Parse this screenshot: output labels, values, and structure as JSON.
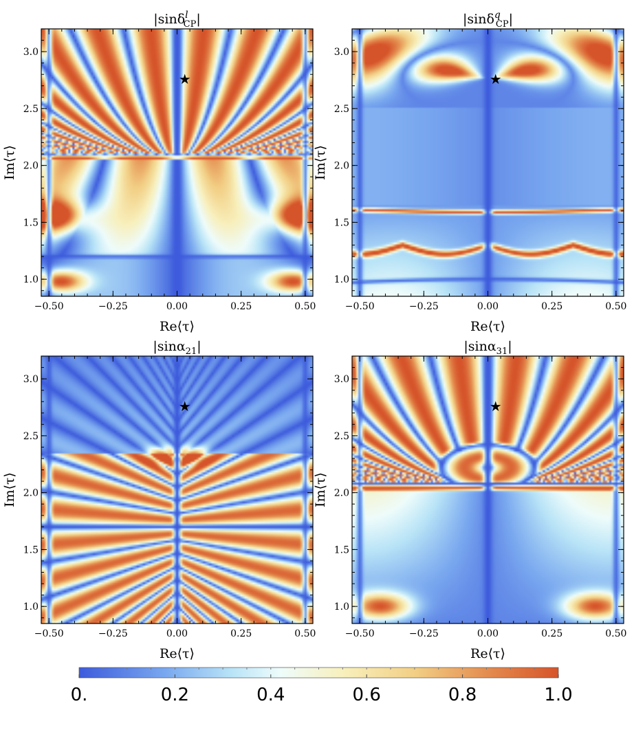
{
  "colors": {
    "low": "#3d5bdc",
    "mid": "#e9fbfb",
    "pale": "#f7e9a8",
    "high": "#d6542a",
    "star": "#000000"
  },
  "chart_data": [
    {
      "type": "heatmap",
      "title": "|sinδ_CP^l|",
      "title_base": "|sinδ",
      "title_sup": "l",
      "title_sub": "CP",
      "title_end": "|",
      "xlabel": "Re⟨τ⟩",
      "ylabel": "Im⟨τ⟩",
      "xlim": [
        -0.53,
        0.53
      ],
      "ylim": [
        0.85,
        3.2
      ],
      "xticks": [
        "−0.50",
        "−0.25",
        "0.00",
        "0.25",
        "0.50"
      ],
      "yticks": [
        "1.0",
        "1.5",
        "2.0",
        "2.5",
        "3.0"
      ],
      "marker": {
        "symbol": "★",
        "x": 0.03,
        "y": 2.76
      },
      "colorscale_range": [
        0,
        1
      ],
      "features": {
        "horizontal_lines_y": [
          1.2,
          2.08
        ],
        "vertical_line_x": [
          0.0
        ]
      }
    },
    {
      "type": "heatmap",
      "title": "|sinδ_CP^q|",
      "title_base": "|sinδ",
      "title_sup": "q",
      "title_sub": "CP",
      "title_end": "|",
      "xlabel": "Re⟨τ⟩",
      "ylabel": "Im⟨τ⟩",
      "xlim": [
        -0.53,
        0.53
      ],
      "ylim": [
        0.85,
        3.2
      ],
      "xticks": [
        "−0.50",
        "−0.25",
        "0.00",
        "0.25",
        "0.50"
      ],
      "yticks": [
        "1.0",
        "1.5",
        "2.0",
        "2.5",
        "3.0"
      ],
      "marker": {
        "symbol": "★",
        "x": 0.03,
        "y": 2.76
      },
      "colorscale_range": [
        0,
        1
      ],
      "features": {
        "horizontal_lines_y": [
          1.0,
          1.21,
          1.32,
          1.6,
          1.63
        ],
        "vertical_line_x": [
          0.0
        ]
      }
    },
    {
      "type": "heatmap",
      "title": "|sinα_21|",
      "title_base": "|sinα",
      "title_sup": "",
      "title_sub": "21",
      "title_end": "|",
      "xlabel": "Re⟨τ⟩",
      "ylabel": "Im⟨τ⟩",
      "xlim": [
        -0.53,
        0.53
      ],
      "ylim": [
        0.85,
        3.2
      ],
      "xticks": [
        "−0.50",
        "−0.25",
        "0.00",
        "0.25",
        "0.50"
      ],
      "yticks": [
        "1.0",
        "1.5",
        "2.0",
        "2.5",
        "3.0"
      ],
      "marker": {
        "symbol": "★",
        "x": 0.03,
        "y": 2.76
      },
      "colorscale_range": [
        0,
        1
      ],
      "features": {
        "horizontal_lines_y": [
          1.7
        ],
        "vertical_line_x": [
          0.0
        ],
        "nodes": [
          [
            0,
            1.0
          ],
          [
            0,
            2.2
          ],
          [
            0,
            2.42
          ],
          [
            -0.5,
            1.7
          ],
          [
            0.5,
            1.7
          ]
        ]
      }
    },
    {
      "type": "heatmap",
      "title": "|sinα_31|",
      "title_base": "|sinα",
      "title_sup": "",
      "title_sub": "31",
      "title_end": "|",
      "xlabel": "Re⟨τ⟩",
      "ylabel": "Im⟨τ⟩",
      "xlim": [
        -0.53,
        0.53
      ],
      "ylim": [
        0.85,
        3.2
      ],
      "xticks": [
        "−0.50",
        "−0.25",
        "0.00",
        "0.25",
        "0.50"
      ],
      "yticks": [
        "1.0",
        "1.5",
        "2.0",
        "2.5",
        "3.0"
      ],
      "marker": {
        "symbol": "★",
        "x": 0.03,
        "y": 2.76
      },
      "colorscale_range": [
        0,
        1
      ],
      "features": {
        "horizontal_lines_y": [
          2.08
        ],
        "vertical_line_x": [
          0.0
        ],
        "nodes": [
          [
            0,
            2.2
          ],
          [
            0,
            2.42
          ]
        ]
      }
    }
  ],
  "colorbar": {
    "range": [
      0,
      1
    ],
    "ticks": [
      "0.",
      "0.2",
      "0.4",
      "0.6",
      "0.8",
      "1.0"
    ],
    "tick_values": [
      0,
      0.2,
      0.4,
      0.6,
      0.8,
      1.0
    ]
  }
}
